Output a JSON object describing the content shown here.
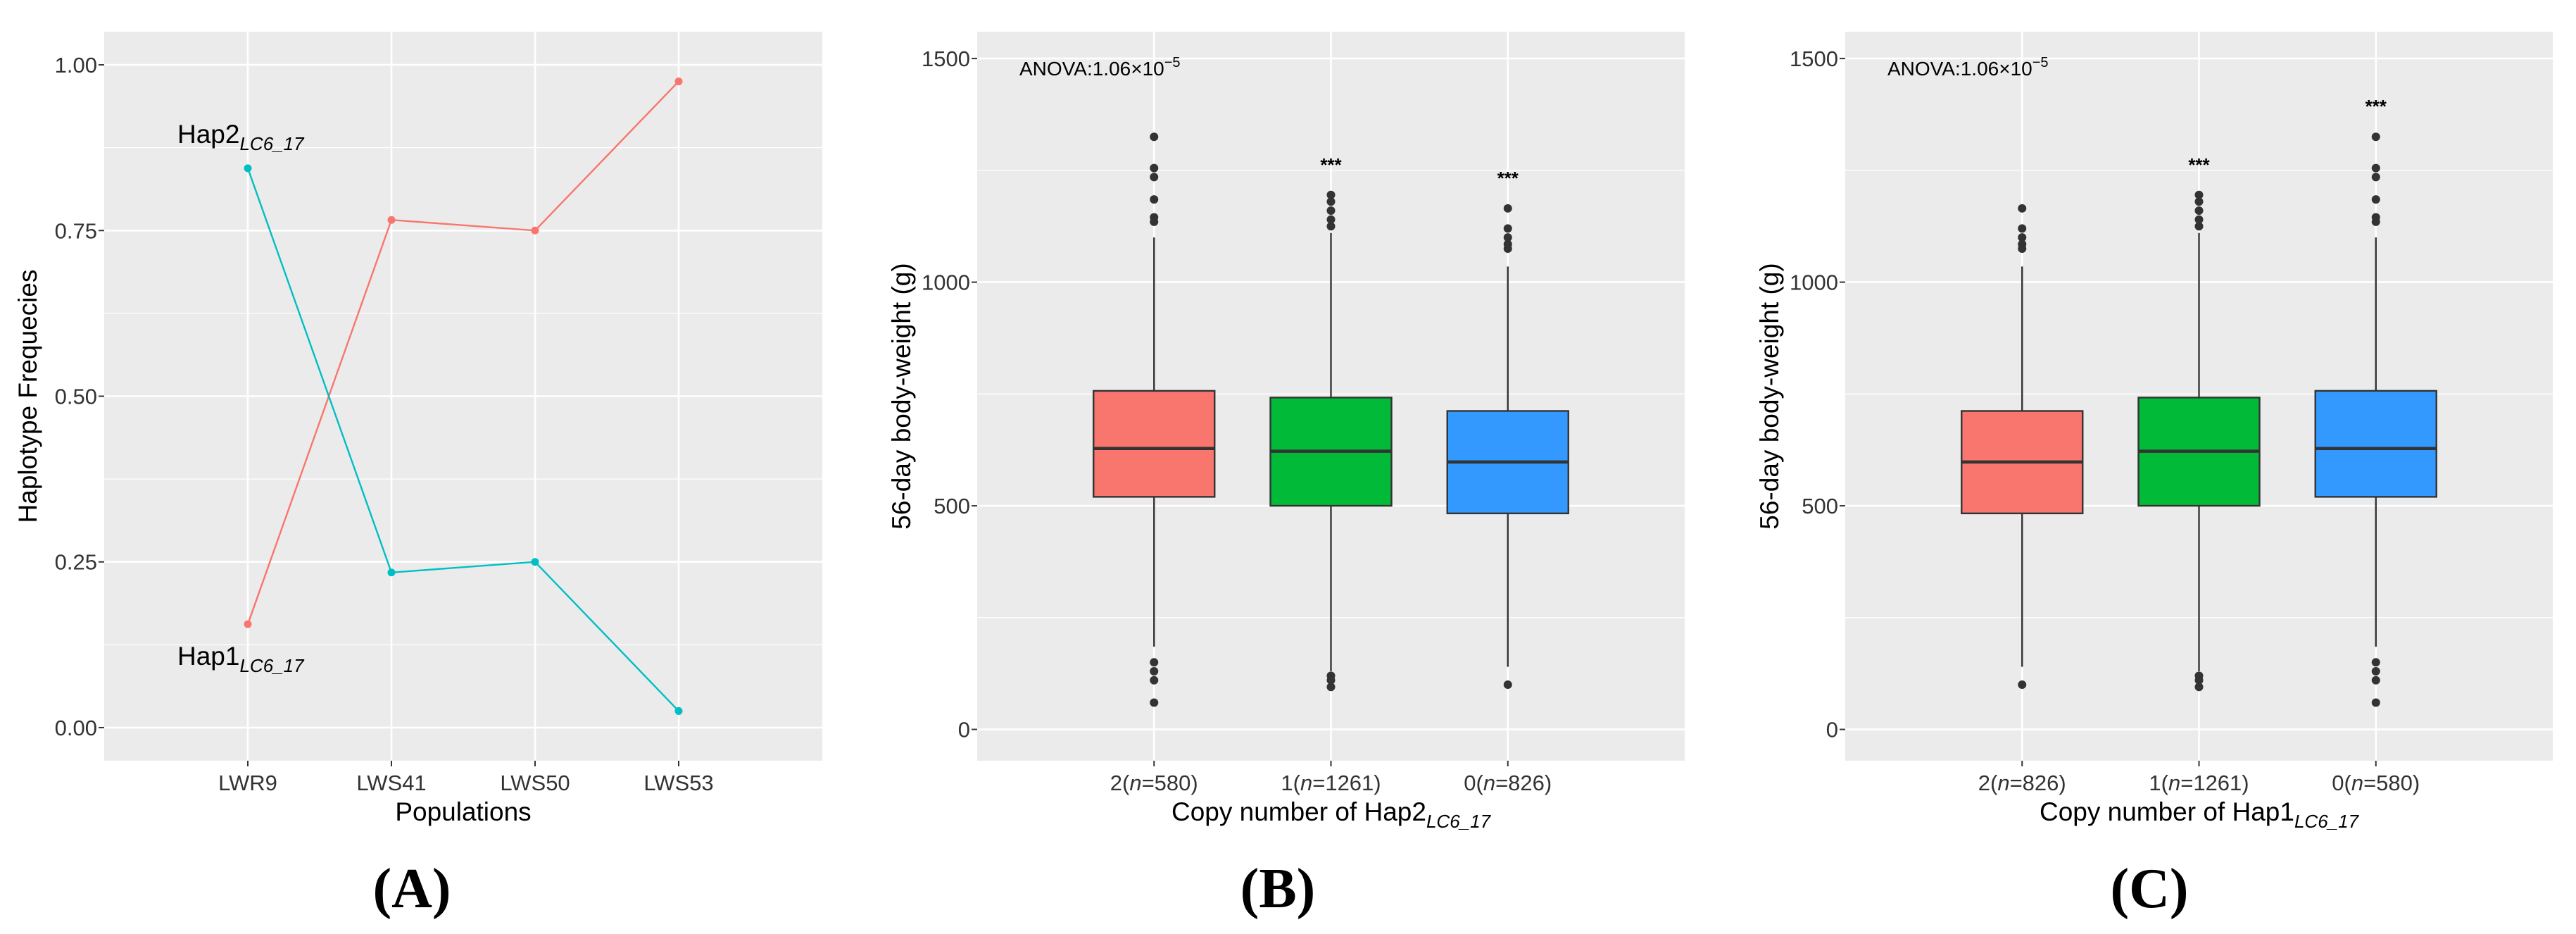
{
  "chart_data": [
    {
      "id": "A",
      "type": "line",
      "panel_label": "(A)",
      "xlabel": "Populations",
      "ylabel": "Haplotype Frequecies",
      "categories": [
        "LWR9",
        "LWS41",
        "LWS50",
        "LWS53"
      ],
      "ylim": [
        -0.05,
        1.05
      ],
      "yticks": [
        0.0,
        0.25,
        0.5,
        0.75,
        1.0
      ],
      "ytick_labels": [
        "0.00",
        "0.25",
        "0.50",
        "0.75",
        "1.00"
      ],
      "grid": true,
      "series": [
        {
          "name": "Hap1",
          "name_sub": "LC6_17",
          "color": "#F8766D",
          "values": [
            0.156,
            0.766,
            0.75,
            0.975
          ]
        },
        {
          "name": "Hap2",
          "name_sub": "LC6_17",
          "color": "#00BFC4",
          "values": [
            0.844,
            0.234,
            0.25,
            0.025
          ]
        }
      ],
      "annotations": [
        {
          "text": "Hap2",
          "sub": "LC6_17",
          "near": "Hap2 at LWR9"
        },
        {
          "text": "Hap1",
          "sub": "LC6_17",
          "near": "Hap1 at LWR9"
        }
      ]
    },
    {
      "id": "B",
      "type": "box",
      "panel_label": "(B)",
      "xlabel": "Copy number of Hap2",
      "xlabel_sub": "LC6_17",
      "ylabel": "56-day body-weight (g)",
      "anova_text": "ANOVA:1.06×10",
      "anova_exp": "−5",
      "ylim": [
        -70,
        1560
      ],
      "yticks": [
        0,
        500,
        1000,
        1500
      ],
      "categories": [
        {
          "prefix": "2(",
          "n_label": "n",
          "suffix": "=580)"
        },
        {
          "prefix": "1(",
          "n_label": "n",
          "suffix": "=1261)"
        },
        {
          "prefix": "0(",
          "n_label": "n",
          "suffix": "=826)"
        }
      ],
      "boxes": [
        {
          "q1": 520,
          "median": 628,
          "q3": 757,
          "whisker_low": 185,
          "whisker_high": 1100,
          "color": "#F8766D",
          "sig": "",
          "outliers": [
            1325,
            1255,
            1235,
            1185,
            1145,
            1135,
            150,
            130,
            110,
            60
          ]
        },
        {
          "q1": 500,
          "median": 622,
          "q3": 742,
          "whisker_low": 130,
          "whisker_high": 1110,
          "color": "#00BA38",
          "sig": "***",
          "outliers": [
            1195,
            1180,
            1160,
            1140,
            1125,
            120,
            110,
            95
          ]
        },
        {
          "q1": 483,
          "median": 598,
          "q3": 712,
          "whisker_low": 140,
          "whisker_high": 1035,
          "color": "#3399FF",
          "sig": "***",
          "outliers": [
            1165,
            1120,
            1100,
            1085,
            1075,
            100
          ]
        }
      ]
    },
    {
      "id": "C",
      "type": "box",
      "panel_label": "(C)",
      "xlabel": "Copy number of Hap1",
      "xlabel_sub": "LC6_17",
      "ylabel": "56-day body-weight (g)",
      "anova_text": "ANOVA:1.06×10",
      "anova_exp": "−5",
      "ylim": [
        -70,
        1560
      ],
      "yticks": [
        0,
        500,
        1000,
        1500
      ],
      "categories": [
        {
          "prefix": "2(",
          "n_label": "n",
          "suffix": "=826)"
        },
        {
          "prefix": "1(",
          "n_label": "n",
          "suffix": "=1261)"
        },
        {
          "prefix": "0(",
          "n_label": "n",
          "suffix": "=580)"
        }
      ],
      "boxes": [
        {
          "q1": 483,
          "median": 598,
          "q3": 712,
          "whisker_low": 140,
          "whisker_high": 1035,
          "color": "#F8766D",
          "sig": "",
          "outliers": [
            1165,
            1120,
            1100,
            1085,
            1075,
            100
          ]
        },
        {
          "q1": 500,
          "median": 622,
          "q3": 742,
          "whisker_low": 130,
          "whisker_high": 1110,
          "color": "#00BA38",
          "sig": "***",
          "outliers": [
            1195,
            1180,
            1160,
            1140,
            1125,
            120,
            110,
            95
          ]
        },
        {
          "q1": 520,
          "median": 628,
          "q3": 757,
          "whisker_low": 185,
          "whisker_high": 1100,
          "color": "#3399FF",
          "sig": "***",
          "outliers": [
            1325,
            1255,
            1235,
            1185,
            1145,
            1135,
            150,
            130,
            110,
            60
          ]
        }
      ]
    }
  ]
}
